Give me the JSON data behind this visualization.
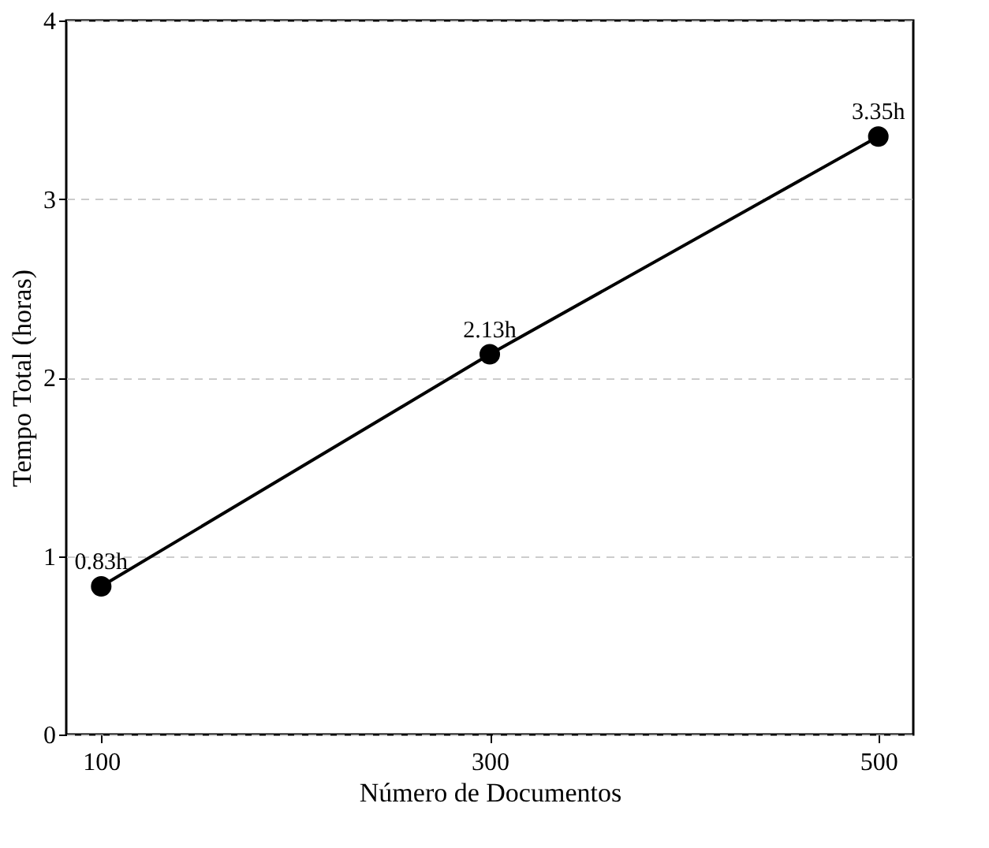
{
  "chart_data": {
    "type": "line",
    "xlabel": "Número de Documentos",
    "ylabel": "Tempo Total (horas)",
    "x": [
      100,
      300,
      500
    ],
    "series": [
      {
        "color": "#000000",
        "values": [
          0.83,
          2.13,
          3.35
        ],
        "value_labels": [
          "0.83h",
          "2.13h",
          "3.35h"
        ]
      }
    ],
    "xlim": [
      82,
      518
    ],
    "xticks": [
      100,
      300,
      500
    ],
    "ylim": [
      0,
      4
    ],
    "yticks": [
      0,
      1,
      2,
      3,
      4
    ],
    "grid": "y",
    "marker": "circle",
    "line_style": "solid"
  }
}
